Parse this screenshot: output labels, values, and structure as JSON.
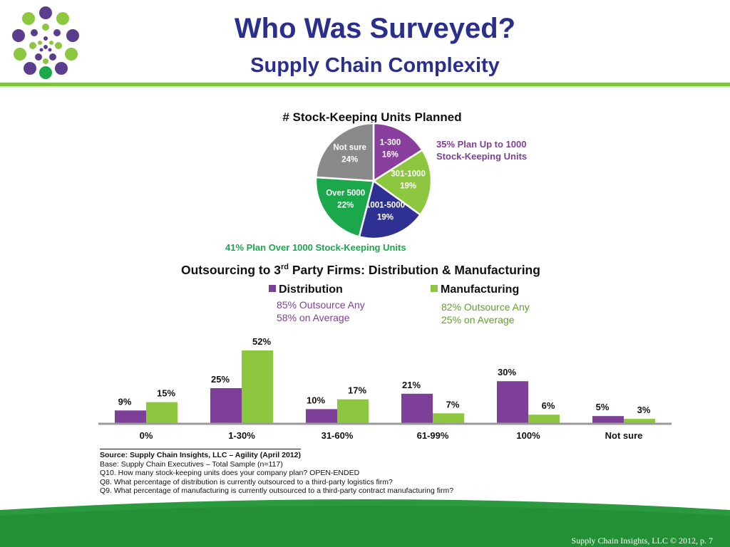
{
  "header": {
    "title": "Who Was Surveyed?",
    "subtitle": "Supply Chain Complexity"
  },
  "colors": {
    "title": "#2b2f8c",
    "accent_green": "#7fc241",
    "distribution": "#7e3f98",
    "manufacturing": "#8dc63f",
    "pie_purple": "#8a3f9e",
    "pie_lightgreen": "#8dc63f",
    "pie_blue": "#2e3192",
    "pie_green": "#1aa84b",
    "pie_gray": "#8a8a8a"
  },
  "chart_data": [
    {
      "type": "pie",
      "title": "# Stock-Keeping Units Planned",
      "slices": [
        {
          "label": "1-300",
          "value": 16,
          "value_label": "16%"
        },
        {
          "label": "301-1000",
          "value": 19,
          "value_label": "19%"
        },
        {
          "label": "1001-5000",
          "value": 19,
          "value_label": "19%"
        },
        {
          "label": "Over 5000",
          "value": 22,
          "value_label": "22%"
        },
        {
          "label": "Not sure",
          "value": 24,
          "value_label": "24%"
        }
      ],
      "annotations": [
        {
          "text": [
            "35% Plan Up to 1000",
            "Stock-Keeping Units"
          ],
          "color": "#7e3f98"
        },
        {
          "text": [
            "41% Plan Over 1000 Stock-Keeping Units"
          ],
          "color": "#1aa84b"
        }
      ]
    },
    {
      "type": "bar",
      "title_pre": "Outsourcing to 3",
      "title_sup": "rd",
      "title_post": " Party Firms:   Distribution & Manufacturing",
      "categories": [
        "0%",
        "1-30%",
        "31-60%",
        "61-99%",
        "100%",
        "Not sure"
      ],
      "series": [
        {
          "name": "Distribution",
          "values": [
            9,
            25,
            10,
            21,
            30,
            5
          ],
          "labels": [
            "9%",
            "25%",
            "10%",
            "21%",
            "30%",
            "5%"
          ],
          "summary": [
            "85% Outsource Any",
            "58% on Average"
          ]
        },
        {
          "name": "Manufacturing",
          "values": [
            15,
            52,
            17,
            7,
            6,
            3
          ],
          "labels": [
            "15%",
            "52%",
            "17%",
            "7%",
            "6%",
            "3%"
          ],
          "summary": [
            "82% Outsource Any",
            "25% on Average"
          ]
        }
      ],
      "ylim": [
        0,
        55
      ],
      "grid": false,
      "legend": "top"
    }
  ],
  "source": {
    "source_line": "Source: Supply Chain Insights, LLC – Agility (April 2012)",
    "base": "Base:  Supply Chain Executives – Total Sample (n=117)",
    "q10": "Q10. How many stock-keeping units does your company plan? OPEN-ENDED",
    "q8": "Q8. What percentage of distribution is currently outsourced to a third-party logistics firm?",
    "q9": "Q9. What percentage of manufacturing is currently outsourced to a third-party contract manufacturing firm?"
  },
  "footer": {
    "text": "Supply Chain Insights, LLC © 2012, p. 7"
  }
}
